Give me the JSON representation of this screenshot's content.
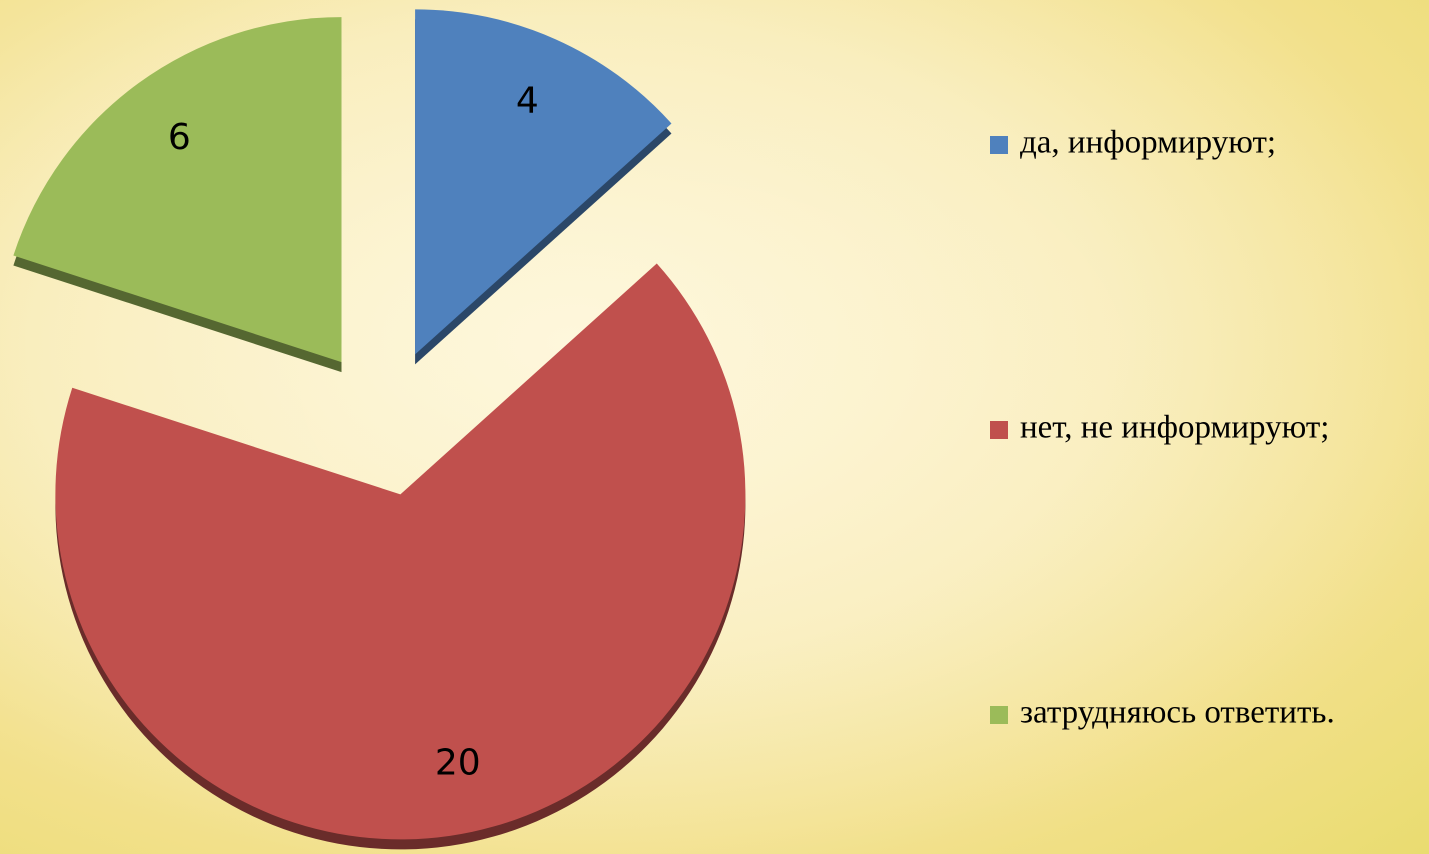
{
  "chart_data": {
    "type": "pie",
    "categories": [
      "да, информируют;",
      "нет, не информируют;",
      "затрудняюсь ответить."
    ],
    "values": [
      4,
      20,
      6
    ],
    "colors": [
      "#4f81bd",
      "#c0504d",
      "#9bbb59"
    ],
    "legend": "right"
  }
}
